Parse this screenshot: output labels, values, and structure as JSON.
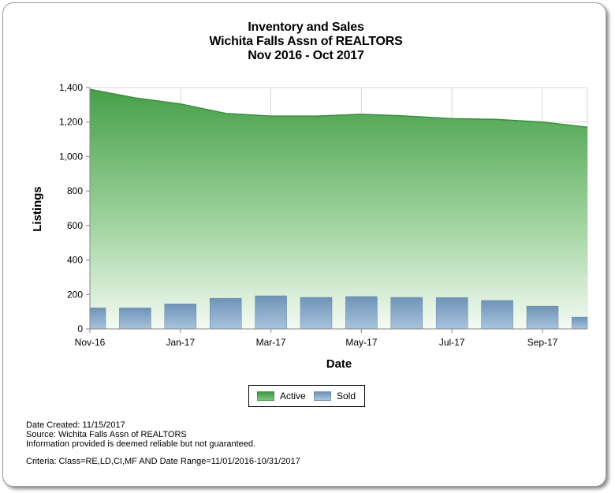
{
  "title": {
    "line1": "Inventory and Sales",
    "line2": "Wichita Falls Assn of REALTORS",
    "line3": "Nov 2016 - Oct 2017"
  },
  "colors": {
    "active": "#4aa44d",
    "sold": "#7d9fc0",
    "grid": "#d9d9d9"
  },
  "chart_data": {
    "type": "area",
    "xlabel": "Date",
    "ylabel": "Listings",
    "ylim": [
      0,
      1400
    ],
    "yticks": [
      "0",
      "200",
      "400",
      "600",
      "800",
      "1,000",
      "1,200",
      "1,400"
    ],
    "x_tick_labels": [
      "Nov-16",
      "Jan-17",
      "Mar-17",
      "May-17",
      "Jul-17",
      "Sep-17"
    ],
    "categories": [
      "Nov-16",
      "Dec-16",
      "Jan-17",
      "Feb-17",
      "Mar-17",
      "Apr-17",
      "May-17",
      "Jun-17",
      "Jul-17",
      "Aug-17",
      "Sep-17",
      "Oct-17"
    ],
    "grid": true,
    "legend_position": "bottom",
    "series": [
      {
        "name": "Active",
        "type": "area",
        "values": [
          1390,
          1340,
          1305,
          1250,
          1235,
          1235,
          1245,
          1235,
          1220,
          1215,
          1200,
          1170
        ]
      },
      {
        "name": "Sold",
        "type": "bar",
        "values": [
          122,
          122,
          145,
          178,
          192,
          183,
          188,
          183,
          182,
          165,
          132,
          68
        ]
      }
    ]
  },
  "legend": {
    "active": "Active",
    "sold": "Sold"
  },
  "footer": {
    "date_created": "Date Created: 11/15/2017",
    "source": "Source: Wichita Falls Assn of REALTORS",
    "disclaimer": "Information provided is deemed reliable but not guaranteed.",
    "criteria": "Criteria: Class=RE,LD,CI,MF AND Date Range=11/01/2016-10/31/2017"
  }
}
